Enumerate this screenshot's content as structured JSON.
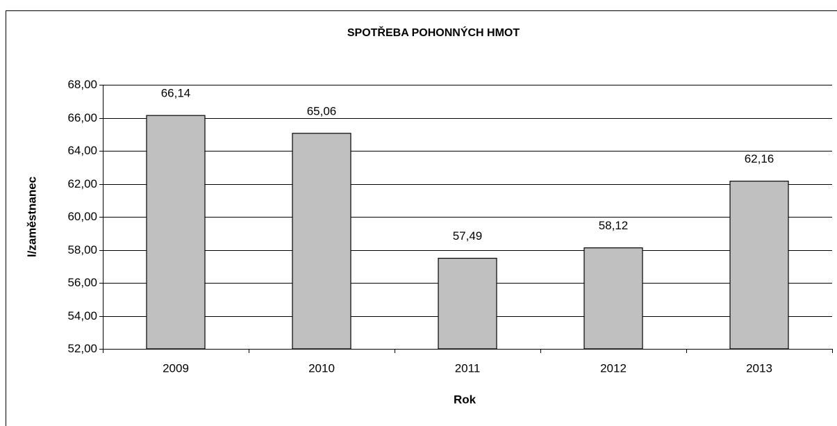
{
  "chart_data": {
    "type": "bar",
    "title": "SPOTŘEBA POHONNÝCH HMOT",
    "x_label": "Rok",
    "y_label": "l/zaměstnanec",
    "categories": [
      "2009",
      "2010",
      "2011",
      "2012",
      "2013"
    ],
    "values": [
      66.14,
      65.06,
      57.49,
      58.12,
      62.16
    ],
    "value_labels": [
      "66,14",
      "65,06",
      "57,49",
      "58,12",
      "62,16"
    ],
    "color": "#c0c0c0",
    "ylim": [
      52,
      68
    ],
    "yticks": [
      {
        "value": 52,
        "label": "52,00"
      },
      {
        "value": 54,
        "label": "54,00"
      },
      {
        "value": 56,
        "label": "56,00"
      },
      {
        "value": 58,
        "label": "58,00"
      },
      {
        "value": 60,
        "label": "60,00"
      },
      {
        "value": 62,
        "label": "62,00"
      },
      {
        "value": 64,
        "label": "64,00"
      },
      {
        "value": 66,
        "label": "66,00"
      },
      {
        "value": 68,
        "label": "68,00"
      }
    ],
    "grid": true
  }
}
